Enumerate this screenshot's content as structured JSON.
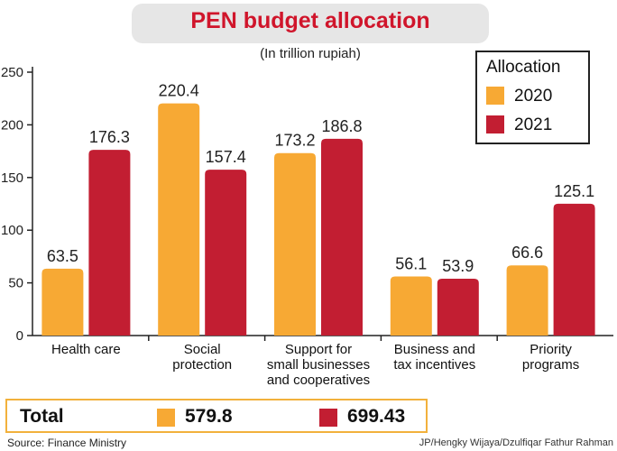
{
  "header": {
    "title": "PEN budget allocation",
    "subtitle": "(In trillion rupiah)"
  },
  "legend": {
    "title": "Allocation",
    "items": [
      "2020",
      "2021"
    ]
  },
  "totals": {
    "label": "Total",
    "values": [
      "579.8",
      "699.43"
    ]
  },
  "footer": {
    "source": "Source: Finance Ministry",
    "credit": "JP/Hengky Wijaya/Dzulfiqar Fathur Rahman"
  },
  "colors": {
    "series_2020": "#f7a934",
    "series_2021": "#c21e32",
    "title": "#d0152b"
  },
  "chart_data": {
    "type": "bar",
    "title": "PEN budget allocation",
    "subtitle": "(In trillion rupiah)",
    "categories": [
      [
        "Health care"
      ],
      [
        "Social",
        "protection"
      ],
      [
        "Support for",
        "small businesses",
        "and cooperatives"
      ],
      [
        "Business and",
        "tax incentives"
      ],
      [
        "Priority",
        "programs"
      ]
    ],
    "series": [
      {
        "name": "2020",
        "values": [
          63.5,
          220.4,
          173.2,
          56.1,
          66.6
        ],
        "labels": [
          "63.5",
          "220.4",
          "173.2",
          "56.1",
          "66.6"
        ]
      },
      {
        "name": "2021",
        "values": [
          176.3,
          157.4,
          186.8,
          53.9,
          125.1
        ],
        "labels": [
          "176.3",
          "157.4",
          "186.8",
          "53.9",
          "125.1"
        ]
      }
    ],
    "yticks": [
      "0",
      "50",
      "100",
      "150",
      "200",
      "250"
    ],
    "ylim": [
      0,
      250
    ],
    "grid": false,
    "legend_position": "top-right"
  }
}
